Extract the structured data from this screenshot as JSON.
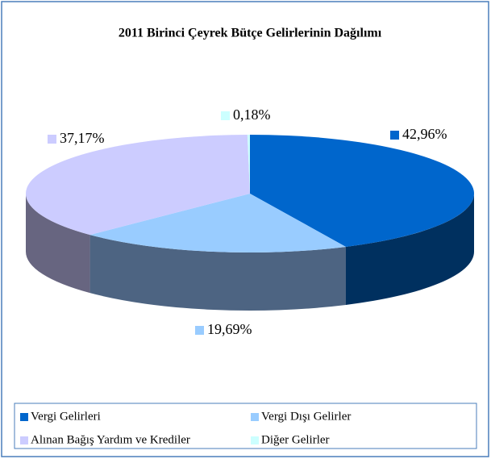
{
  "chart_data": {
    "type": "pie3d",
    "title": "2011  Birinci Çeyrek Bütçe Gelirlerinin Dağılımı",
    "categories": [
      "Vergi Gelirleri",
      "Vergi Dışı Gelirler",
      "Alınan Bağış Yardım ve Krediler",
      "Diğer Gelirler"
    ],
    "values": [
      42.96,
      19.69,
      37.17,
      0.18
    ],
    "value_labels": [
      "42,96%",
      "19,69%",
      "37,17%",
      "0,18%"
    ],
    "colors": [
      "#0066cc",
      "#99ccff",
      "#ccccff",
      "#ccffff"
    ],
    "legend": "bottom"
  }
}
